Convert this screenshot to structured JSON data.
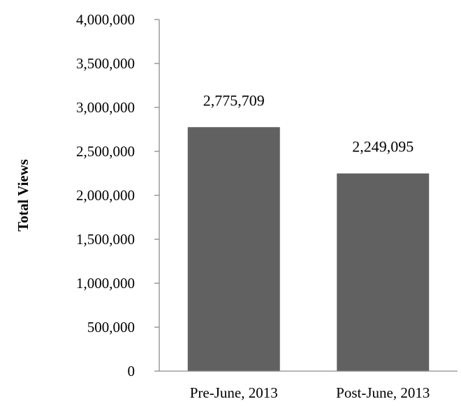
{
  "chart_data": {
    "type": "bar",
    "categories": [
      "Pre-June, 2013",
      "Post-June, 2013"
    ],
    "values": [
      2775709,
      2249095
    ],
    "data_labels": [
      "2,775,709",
      "2,249,095"
    ],
    "title": "",
    "xlabel": "",
    "ylabel": "Total Views",
    "ylim": [
      0,
      4000000
    ],
    "yticks": [
      0,
      500000,
      1000000,
      1500000,
      2000000,
      2500000,
      3000000,
      3500000,
      4000000
    ],
    "ytick_labels": [
      "0",
      "500,000",
      "1,000,000",
      "1,500,000",
      "2,000,000",
      "2,500,000",
      "3,000,000",
      "3,500,000",
      "4,000,000"
    ],
    "grid": false,
    "legend": "none",
    "bar_color": "#616161",
    "axis_color": "#8c8c8c"
  }
}
